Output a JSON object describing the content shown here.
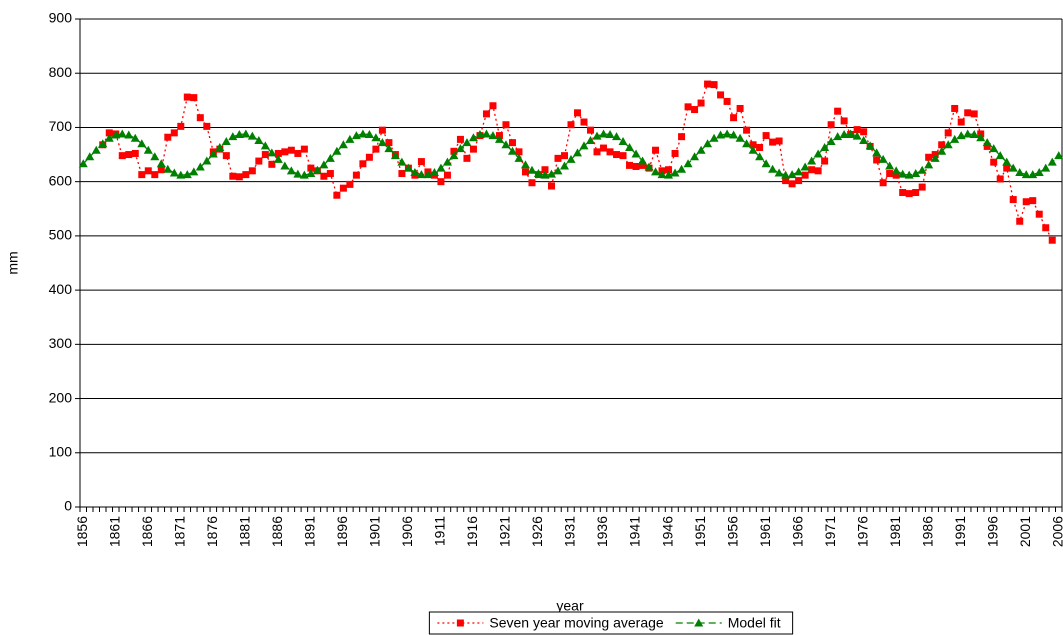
{
  "chart_data": {
    "type": "line",
    "x_label": "year",
    "y_label": "mm",
    "categories": [
      "1856",
      null,
      null,
      null,
      null,
      "1861",
      null,
      null,
      null,
      null,
      "1866",
      null,
      null,
      null,
      null,
      "1871",
      null,
      null,
      null,
      null,
      "1876",
      null,
      null,
      null,
      null,
      "1881",
      null,
      null,
      null,
      null,
      "1886",
      null,
      null,
      null,
      null,
      "1891",
      null,
      null,
      null,
      null,
      "1896",
      null,
      null,
      null,
      null,
      "1901",
      null,
      null,
      null,
      null,
      "1906",
      null,
      null,
      null,
      null,
      "1911",
      null,
      null,
      null,
      null,
      "1916",
      null,
      null,
      null,
      null,
      "1921",
      null,
      null,
      null,
      null,
      "1926",
      null,
      null,
      null,
      null,
      "1931",
      null,
      null,
      null,
      null,
      "1936",
      null,
      null,
      null,
      null,
      "1941",
      null,
      null,
      null,
      null,
      "1946",
      null,
      null,
      null,
      null,
      "1951",
      null,
      null,
      null,
      null,
      "1956",
      null,
      null,
      null,
      null,
      "1961",
      null,
      null,
      null,
      null,
      "1966",
      null,
      null,
      null,
      null,
      "1971",
      null,
      null,
      null,
      null,
      "1976",
      null,
      null,
      null,
      null,
      "1981",
      null,
      null,
      null,
      null,
      "1986",
      null,
      null,
      null,
      null,
      "1991",
      null,
      null,
      null,
      null,
      "1996",
      null,
      null,
      null,
      null,
      "2001",
      null,
      null,
      null,
      null,
      "2006"
    ],
    "series": [
      {
        "name": "Seven year moving average",
        "color": "#ff0000",
        "marker": "square",
        "dash": "dotted",
        "values": [
          null,
          null,
          null,
          668,
          690,
          688,
          648,
          650,
          652,
          613,
          620,
          613,
          622,
          682,
          690,
          702,
          756,
          755,
          718,
          702,
          655,
          660,
          648,
          610,
          609,
          613,
          620,
          638,
          650,
          632,
          652,
          655,
          658,
          652,
          660,
          625,
          620,
          610,
          615,
          575,
          588,
          595,
          612,
          633,
          645,
          660,
          695,
          672,
          650,
          615,
          625,
          612,
          637,
          618,
          612,
          600,
          612,
          656,
          678,
          643,
          660,
          685,
          725,
          740,
          685,
          705,
          672,
          655,
          618,
          598,
          613,
          622,
          592,
          643,
          648,
          705,
          727,
          710,
          695,
          655,
          662,
          655,
          650,
          648,
          630,
          628,
          630,
          625,
          658,
          620,
          622,
          652,
          683,
          738,
          733,
          745,
          780,
          779,
          760,
          748,
          718,
          735,
          695,
          668,
          663,
          685,
          673,
          675,
          602,
          596,
          602,
          612,
          622,
          620,
          638,
          705,
          730,
          712,
          687,
          696,
          692,
          665,
          640,
          598,
          615,
          612,
          580,
          578,
          580,
          590,
          645,
          650,
          668,
          690,
          735,
          710,
          727,
          725,
          688,
          665,
          636,
          605,
          625,
          567,
          527,
          563,
          565,
          540,
          515,
          492,
          null
        ]
      },
      {
        "name": "Model fit",
        "color": "#008000",
        "marker": "triangle",
        "dash": "dashed",
        "values": [
          633,
          646,
          658,
          670,
          680,
          686,
          688,
          686,
          680,
          670,
          658,
          646,
          633,
          623,
          616,
          612,
          613,
          618,
          627,
          638,
          651,
          663,
          674,
          683,
          687,
          688,
          684,
          676,
          666,
          653,
          641,
          629,
          620,
          614,
          612,
          615,
          621,
          631,
          643,
          656,
          668,
          678,
          685,
          688,
          687,
          681,
          672,
          661,
          648,
          636,
          625,
          617,
          613,
          613,
          617,
          625,
          636,
          648,
          661,
          672,
          681,
          687,
          688,
          685,
          678,
          668,
          656,
          643,
          631,
          621,
          615,
          612,
          614,
          620,
          629,
          641,
          653,
          666,
          676,
          684,
          688,
          687,
          683,
          674,
          663,
          651,
          638,
          627,
          618,
          613,
          612,
          616,
          623,
          633,
          646,
          658,
          670,
          680,
          686,
          688,
          686,
          680,
          670,
          658,
          646,
          633,
          623,
          616,
          612,
          613,
          618,
          627,
          638,
          651,
          663,
          674,
          683,
          687,
          688,
          684,
          676,
          666,
          653,
          641,
          629,
          620,
          614,
          612,
          615,
          621,
          631,
          643,
          656,
          668,
          678,
          685,
          688,
          687,
          681,
          672,
          661,
          648,
          636,
          625,
          617,
          613,
          613,
          617,
          625,
          636,
          648
        ]
      }
    ],
    "ylim": [
      0,
      900
    ],
    "yticks": [
      0,
      100,
      200,
      300,
      400,
      500,
      600,
      700,
      800,
      900
    ],
    "grid": true,
    "legend": "bottom"
  }
}
